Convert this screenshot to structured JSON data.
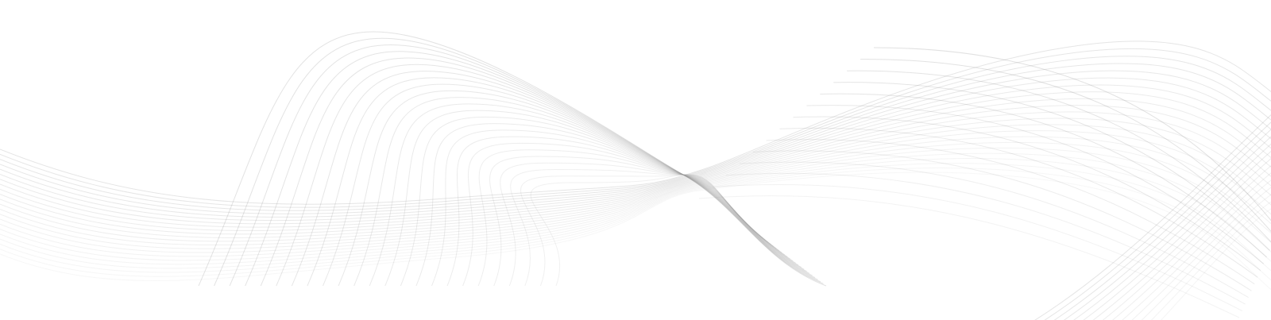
{
  "background": {
    "color": "#ffffff",
    "line_color": "#9a9a9a"
  },
  "wave_groups": [
    {
      "name": "left-arch-wave-lines",
      "line_count": 24
    },
    {
      "name": "long-swoop-wave-lines",
      "line_count": 22
    },
    {
      "name": "right-cross-wave-lines",
      "line_count": 14
    }
  ]
}
